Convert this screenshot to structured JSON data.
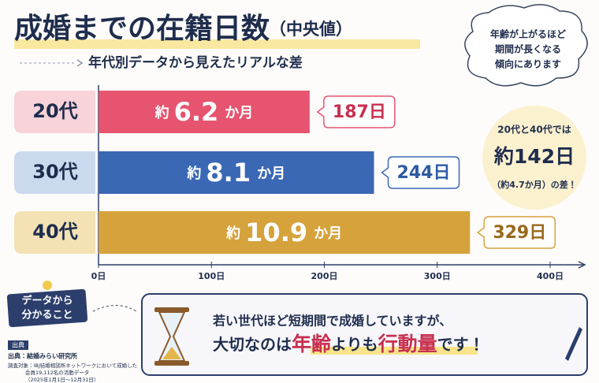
{
  "chart_data": {
    "type": "bar",
    "orientation": "horizontal",
    "title": "成婚までの在籍日数",
    "title_suffix": "（中央値）",
    "subtitle": "年代別データから見えたリアルな差",
    "categories": [
      "20代",
      "30代",
      "40代"
    ],
    "values": [
      187,
      244,
      329
    ],
    "value_labels": [
      "187日",
      "244日",
      "329日"
    ],
    "colors": [
      "#e6546f",
      "#3b68b5",
      "#d6a23c"
    ],
    "label_colors": [
      "#f9d3da",
      "#cbd9ef",
      "#f4e2b4"
    ],
    "text_colors": [
      "#c8304f",
      "#2c5aa5",
      "#98691a"
    ],
    "month_prefix": "約",
    "month_labels": [
      "6.2",
      "8.1",
      "10.9"
    ],
    "month_unit": "か月",
    "xlim": [
      0,
      400
    ],
    "xticks": [
      {
        "value": 0,
        "label": "0日"
      },
      {
        "value": 100,
        "label": "100日"
      },
      {
        "value": 200,
        "label": "200日"
      },
      {
        "value": 300,
        "label": "300日"
      },
      {
        "value": 400,
        "label": "400日"
      }
    ]
  },
  "note": {
    "line1": "年齢が上がるほど",
    "line2": "期間が長くなる",
    "line3": "傾向にあります"
  },
  "callout": {
    "line1": "20代と40代では",
    "line2": "約142日",
    "line3": "（約4.7か月）の差！"
  },
  "summary": {
    "tag1": "データから",
    "tag2": "分かること",
    "line1": "若い世代ほど短期間で成婚していますが、",
    "part1": "大切なのは",
    "part2": "年齢",
    "part3": "よりも",
    "part4": "行動量",
    "part5": "です！"
  },
  "source": {
    "heading": "出典",
    "line1": "出典：結婚みらい研究所",
    "line2": "調査対象：IBJ結婚相談所ネットワークにおいて成婚した",
    "line3": "会員19,112名の活動データ",
    "line4": "（2025年1月1日〜12月31日）"
  }
}
